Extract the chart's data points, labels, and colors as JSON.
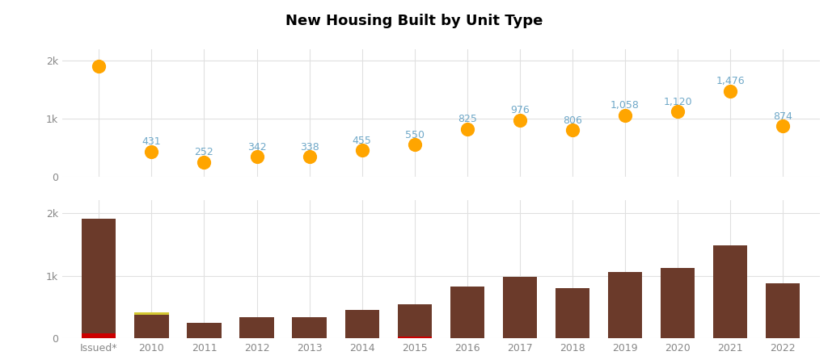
{
  "title": "New Housing Built by Unit Type",
  "title_bg": "#bee8f5",
  "categories": [
    "Issued*",
    "2010",
    "2011",
    "2012",
    "2013",
    "2014",
    "2015",
    "2016",
    "2017",
    "2018",
    "2019",
    "2020",
    "2021",
    "2022"
  ],
  "dot_values": [
    1900,
    431,
    252,
    342,
    338,
    455,
    550,
    825,
    976,
    806,
    1058,
    1120,
    1476,
    874
  ],
  "dot_labels": [
    "",
    "431",
    "252",
    "342",
    "338",
    "455",
    "550",
    "825",
    "976",
    "806",
    "1,058",
    "1,120",
    "1,476",
    "874"
  ],
  "dot_color": "#FFA500",
  "dot_size": 130,
  "bar_brown": [
    1820,
    380,
    252,
    342,
    338,
    455,
    520,
    825,
    976,
    806,
    1058,
    1120,
    1476,
    874
  ],
  "bar_yellow_top": [
    0,
    30,
    0,
    0,
    0,
    0,
    0,
    0,
    0,
    0,
    0,
    0,
    0,
    0
  ],
  "bar_red_bottom": [
    80,
    0,
    0,
    0,
    0,
    0,
    30,
    0,
    0,
    0,
    0,
    0,
    0,
    0
  ],
  "color_brown": "#6B3A2A",
  "color_yellow": "#D4C832",
  "color_red": "#CC0000",
  "ylim": [
    0,
    2200
  ],
  "ytick_vals": [
    0,
    1000,
    2000
  ],
  "ytick_labels": [
    "0",
    "1k",
    "2k"
  ],
  "fig_bg": "#ffffff",
  "grid_color": "#e0e0e0",
  "label_color": "#6fa8c8",
  "font_size_title": 13,
  "font_size_labels": 9,
  "font_size_ticks": 9,
  "bar_width": 0.65
}
